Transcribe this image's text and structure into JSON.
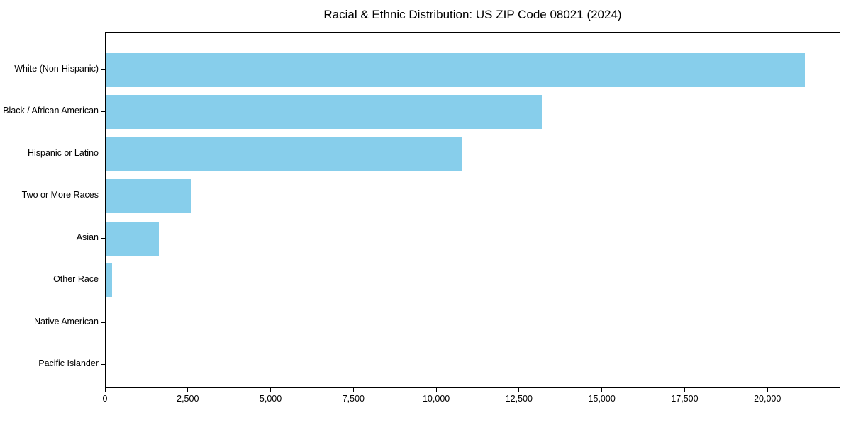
{
  "chart_data": {
    "type": "bar",
    "orientation": "horizontal",
    "title": "Racial & Ethnic Distribution: US ZIP Code 08021 (2024)",
    "categories": [
      "White (Non-Hispanic)",
      "Black / African American",
      "Hispanic or Latino",
      "Two or More Races",
      "Asian",
      "Other Race",
      "Native American",
      "Pacific Islander"
    ],
    "values": [
      21150,
      13200,
      10780,
      2570,
      1600,
      190,
      30,
      8
    ],
    "xlabel": "",
    "ylabel": "",
    "xlim": [
      0,
      22200
    ],
    "x_ticks": [
      0,
      2500,
      5000,
      7500,
      10000,
      12500,
      15000,
      17500,
      20000
    ],
    "x_tick_labels": [
      "0",
      "2,500",
      "5,000",
      "7,500",
      "10,000",
      "12,500",
      "15,000",
      "17,500",
      "20,000"
    ],
    "bar_color": "#87CEEB",
    "text_color": "#000000",
    "grid": false,
    "legend": "none"
  }
}
